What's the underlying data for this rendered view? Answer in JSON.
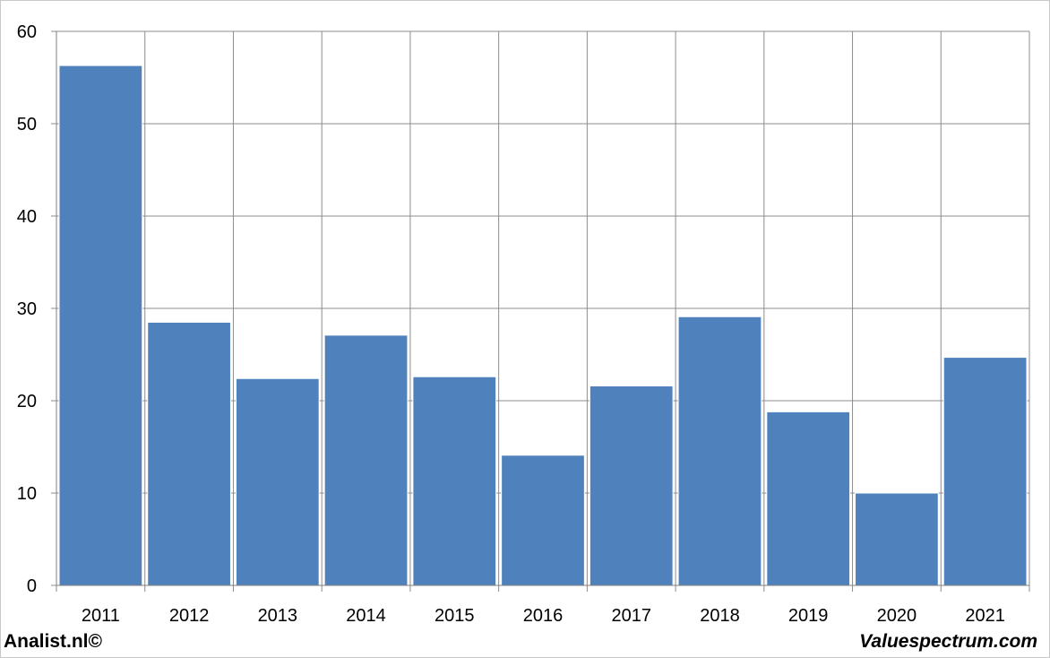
{
  "chart_data": {
    "type": "bar",
    "categories": [
      "2011",
      "2012",
      "2013",
      "2014",
      "2015",
      "2016",
      "2017",
      "2018",
      "2019",
      "2020",
      "2021"
    ],
    "values": [
      56.3,
      28.5,
      22.4,
      27.1,
      22.6,
      14.1,
      21.6,
      29.1,
      18.8,
      10.0,
      24.7
    ],
    "ylim": [
      0,
      60
    ],
    "yticks": [
      0,
      10,
      20,
      30,
      40,
      50,
      60
    ],
    "grid": true,
    "bar_color": "#4f81bd",
    "grid_color": "#8c8c8c"
  },
  "footer": {
    "left": "Analist.nl©",
    "right": "Valuespectrum.com"
  }
}
